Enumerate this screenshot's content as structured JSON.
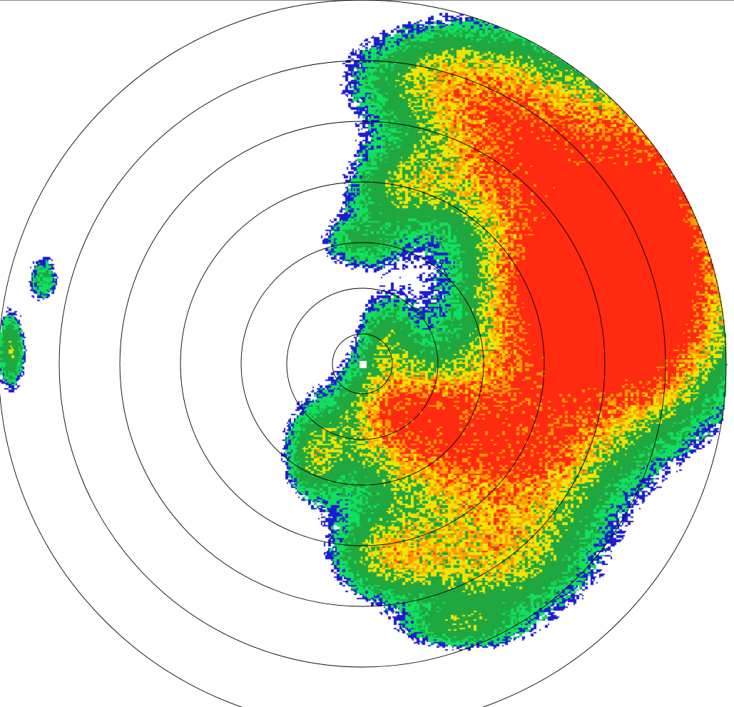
{
  "radar": {
    "ring_count": 7,
    "ring_color": "#000000",
    "background": "#ffffff",
    "reflectivity_palette": [
      {
        "level": "very-light",
        "color": "#1c1cd0"
      },
      {
        "level": "light",
        "color": "#10e060"
      },
      {
        "level": "moderate",
        "color": "#20a840"
      },
      {
        "level": "heavy",
        "color": "#f2e400"
      },
      {
        "level": "very-heavy",
        "color": "#ff9a00"
      },
      {
        "level": "intense",
        "color": "#ff2a10"
      }
    ]
  }
}
